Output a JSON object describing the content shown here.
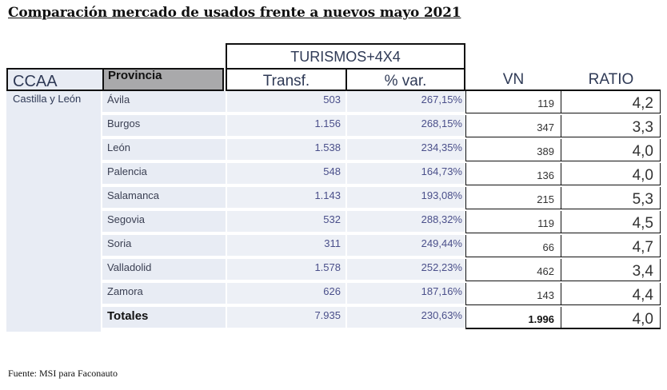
{
  "title": "Comparación mercado de usados frente a nuevos mayo 2021",
  "group_header": "TURISMOS+4X4",
  "headers": {
    "ccaa": "CCAA",
    "provincia": "Provincia",
    "transf": "Transf.",
    "pvar": "% var.",
    "vn": "VN",
    "ratio": "RATIO"
  },
  "region": "Castilla y León",
  "rows": [
    {
      "provincia": "Ávila",
      "transf": "503",
      "pvar": "267,15%",
      "vn": "119",
      "ratio": "4,2"
    },
    {
      "provincia": "Burgos",
      "transf": "1.156",
      "pvar": "268,15%",
      "vn": "347",
      "ratio": "3,3"
    },
    {
      "provincia": "León",
      "transf": "1.538",
      "pvar": "234,35%",
      "vn": "389",
      "ratio": "4,0"
    },
    {
      "provincia": "Palencia",
      "transf": "548",
      "pvar": "164,73%",
      "vn": "136",
      "ratio": "4,0"
    },
    {
      "provincia": "Salamanca",
      "transf": "1.143",
      "pvar": "193,08%",
      "vn": "215",
      "ratio": "5,3"
    },
    {
      "provincia": "Segovia",
      "transf": "532",
      "pvar": "288,32%",
      "vn": "119",
      "ratio": "4,5"
    },
    {
      "provincia": "Soria",
      "transf": "311",
      "pvar": "249,44%",
      "vn": "66",
      "ratio": "4,7"
    },
    {
      "provincia": "Valladolid",
      "transf": "1.578",
      "pvar": "252,23%",
      "vn": "462",
      "ratio": "3,4"
    },
    {
      "provincia": "Zamora",
      "transf": "626",
      "pvar": "187,16%",
      "vn": "143",
      "ratio": "4,4"
    }
  ],
  "totals": {
    "label": "Totales",
    "transf": "7.935",
    "pvar": "230,63%",
    "vn": "1.996",
    "ratio": "4,0"
  },
  "footer": "Fuente: MSI para Faconauto"
}
